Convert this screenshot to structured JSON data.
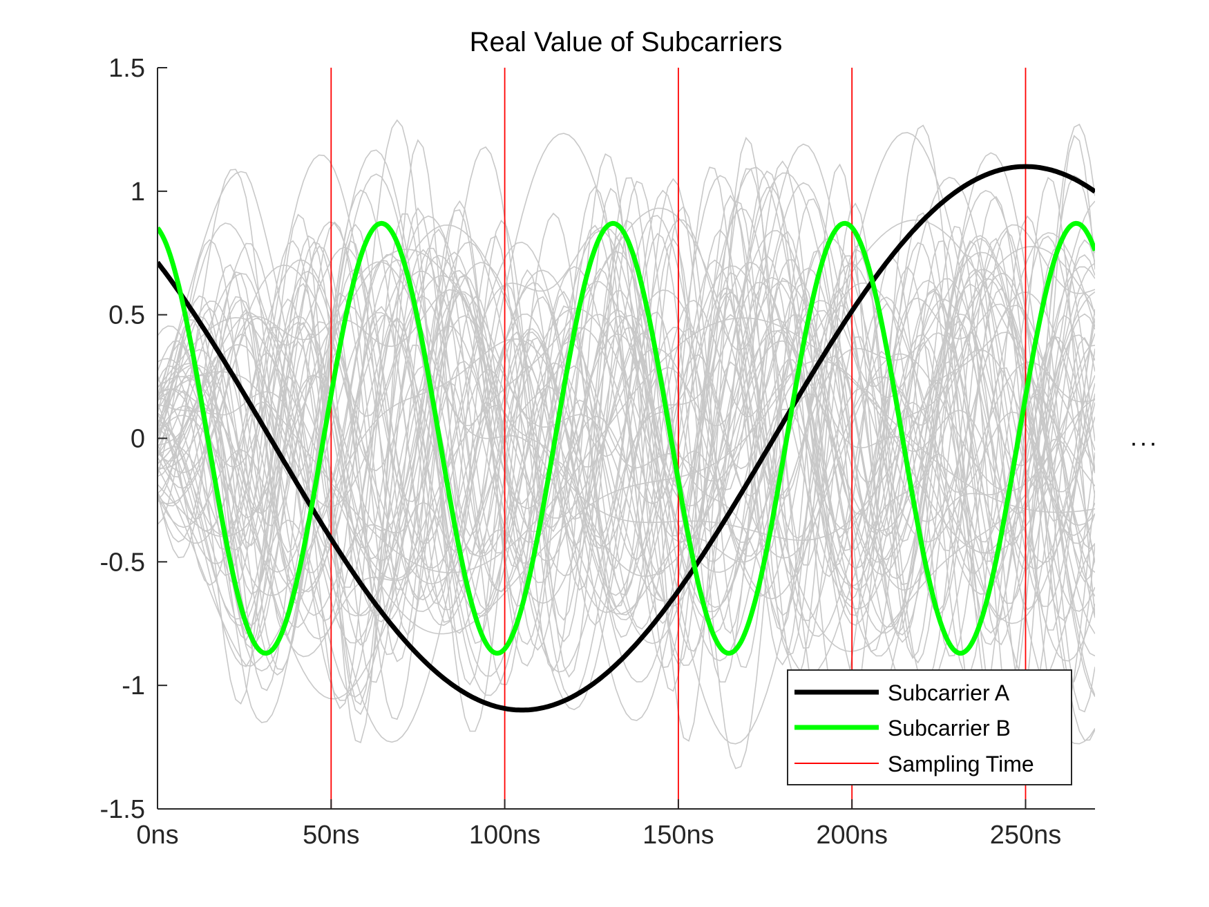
{
  "chart_data": {
    "type": "line",
    "title": "Real Value of Subcarriers",
    "xlabel": "",
    "ylabel": "",
    "x_unit": "ns",
    "xlim": [
      0,
      270
    ],
    "ylim": [
      -1.5,
      1.5
    ],
    "x_ticks": [
      {
        "value": 0,
        "label": "0ns"
      },
      {
        "value": 50,
        "label": "50ns"
      },
      {
        "value": 100,
        "label": "100ns"
      },
      {
        "value": 150,
        "label": "150ns"
      },
      {
        "value": 200,
        "label": "200ns"
      },
      {
        "value": 250,
        "label": "250ns"
      }
    ],
    "y_ticks": [
      {
        "value": 1.5,
        "label": "1.5"
      },
      {
        "value": 1,
        "label": "1"
      },
      {
        "value": 0.5,
        "label": "0.5"
      },
      {
        "value": 0,
        "label": "0"
      },
      {
        "value": -0.5,
        "label": "-0.5"
      },
      {
        "value": -1,
        "label": "-1"
      },
      {
        "value": -1.5,
        "label": "-1.5"
      }
    ],
    "grid": false,
    "legend_position": "bottom-right",
    "series": [
      {
        "name": "Subcarrier A",
        "color": "#000000",
        "amplitude": 1.1,
        "period_ns": 290,
        "peak_at_ns": 250,
        "x": [
          0,
          50,
          100,
          104,
          150,
          200,
          250,
          270
        ],
        "y": [
          0.68,
          -0.43,
          -1.09,
          -1.1,
          -0.61,
          0.53,
          1.1,
          0.99
        ]
      },
      {
        "name": "Subcarrier B",
        "color": "#00ff00",
        "amplitude": 0.87,
        "period_ns": 66.7,
        "peak_at_ns": 64.5,
        "x": [
          0,
          31,
          64.5,
          98,
          131,
          164,
          198,
          231,
          264,
          270
        ],
        "y": [
          0.83,
          -0.87,
          0.87,
          -0.87,
          0.87,
          -0.87,
          0.87,
          -0.87,
          0.87,
          0.74
        ]
      },
      {
        "name": "Sampling Time",
        "color": "#ff0000",
        "x_values": [
          50,
          100,
          150,
          200,
          250
        ]
      }
    ],
    "background_curves": {
      "color": "#c8c8c8",
      "count": 60,
      "value_range": [
        -1.34,
        1.34
      ]
    },
    "continuation_mark": "..."
  }
}
